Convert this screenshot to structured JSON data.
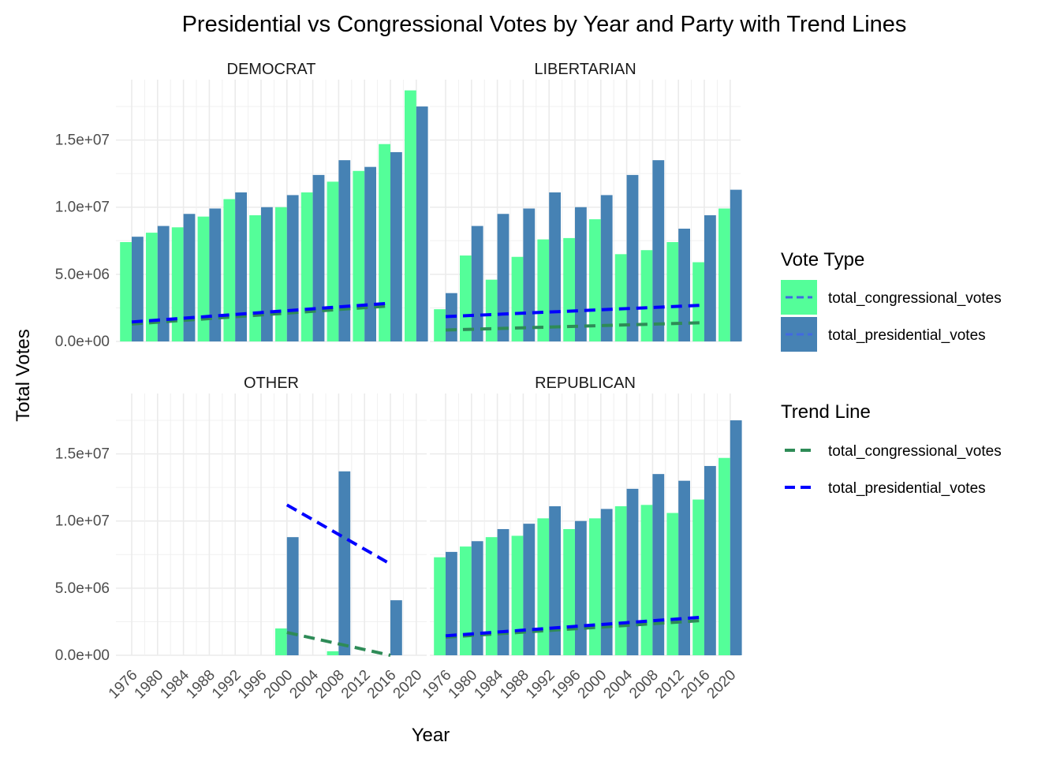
{
  "chart_data": {
    "type": "bar",
    "title": "Presidential vs Congressional Votes by Year and Party with Trend Lines",
    "xlabel": "Year",
    "ylabel": "Total Votes",
    "ylim": [
      0,
      19500000
    ],
    "y_ticks": [
      0,
      5000000,
      10000000,
      15000000
    ],
    "y_tick_labels": [
      "0.0e+00",
      "5.0e+06",
      "1.0e+07",
      "1.5e+07"
    ],
    "x_tick_labels": [
      "1976",
      "1980",
      "1984",
      "1988",
      "1992",
      "1996",
      "2000",
      "2004",
      "2008",
      "2012",
      "2016",
      "2020"
    ],
    "grid": true,
    "legend_position": "right",
    "colors": {
      "total_congressional_votes": "#54FE99",
      "total_presidential_votes": "#4682B4",
      "trend_congressional": "#2E8B57",
      "trend_presidential": "#0000FF"
    },
    "legend": {
      "fill_title": "Vote Type",
      "fill_items": [
        "total_congressional_votes",
        "total_presidential_votes"
      ],
      "line_title": "Trend Line",
      "line_items": [
        "total_congressional_votes",
        "total_presidential_votes"
      ]
    },
    "panels": [
      {
        "name": "DEMOCRAT",
        "congressional": [
          [
            1976,
            7400000
          ],
          [
            1980,
            8100000
          ],
          [
            1984,
            8500000
          ],
          [
            1988,
            9300000
          ],
          [
            1992,
            10600000
          ],
          [
            1996,
            9400000
          ],
          [
            2000,
            10000000
          ],
          [
            2004,
            11100000
          ],
          [
            2008,
            11900000
          ],
          [
            2012,
            12700000
          ],
          [
            2016,
            14700000
          ],
          [
            2020,
            18700000
          ]
        ],
        "presidential": [
          [
            1976,
            7800000
          ],
          [
            1980,
            8600000
          ],
          [
            1984,
            9500000
          ],
          [
            1988,
            9900000
          ],
          [
            1992,
            11100000
          ],
          [
            1996,
            10000000
          ],
          [
            2000,
            10900000
          ],
          [
            2004,
            12400000
          ],
          [
            2008,
            13500000
          ],
          [
            2012,
            13000000
          ],
          [
            2016,
            14100000
          ],
          [
            2020,
            17500000
          ]
        ],
        "trend_congressional": [
          [
            1976,
            1300000
          ],
          [
            2016,
            2650000
          ]
        ],
        "trend_presidential": [
          [
            1976,
            1450000
          ],
          [
            2016,
            2850000
          ]
        ]
      },
      {
        "name": "LIBERTARIAN",
        "congressional": [
          [
            1976,
            2400000
          ],
          [
            1980,
            6400000
          ],
          [
            1984,
            4600000
          ],
          [
            1988,
            6300000
          ],
          [
            1992,
            7600000
          ],
          [
            1996,
            7700000
          ],
          [
            2000,
            9100000
          ],
          [
            2004,
            6500000
          ],
          [
            2008,
            6800000
          ],
          [
            2012,
            7400000
          ],
          [
            2016,
            5900000
          ],
          [
            2020,
            9900000
          ]
        ],
        "presidential": [
          [
            1976,
            3600000
          ],
          [
            1980,
            8600000
          ],
          [
            1984,
            9500000
          ],
          [
            1988,
            9900000
          ],
          [
            1992,
            11100000
          ],
          [
            1996,
            10000000
          ],
          [
            2000,
            10900000
          ],
          [
            2004,
            12400000
          ],
          [
            2008,
            13500000
          ],
          [
            2012,
            8400000
          ],
          [
            2016,
            9400000
          ],
          [
            2020,
            11300000
          ]
        ],
        "trend_congressional": [
          [
            1976,
            850000
          ],
          [
            2016,
            1400000
          ]
        ],
        "trend_presidential": [
          [
            1976,
            1850000
          ],
          [
            2016,
            2700000
          ]
        ]
      },
      {
        "name": "OTHER",
        "congressional": [
          [
            2000,
            2000000
          ],
          [
            2008,
            300000
          ]
        ],
        "presidential": [
          [
            2000,
            8800000
          ],
          [
            2008,
            13700000
          ],
          [
            2016,
            4100000
          ]
        ],
        "trend_congressional": [
          [
            2000,
            1700000
          ],
          [
            2016,
            0
          ]
        ],
        "trend_presidential": [
          [
            2000,
            11200000
          ],
          [
            2016,
            6800000
          ]
        ]
      },
      {
        "name": "REPUBLICAN",
        "congressional": [
          [
            1976,
            7300000
          ],
          [
            1980,
            8100000
          ],
          [
            1984,
            8800000
          ],
          [
            1988,
            8900000
          ],
          [
            1992,
            10200000
          ],
          [
            1996,
            9400000
          ],
          [
            2000,
            10200000
          ],
          [
            2004,
            11100000
          ],
          [
            2008,
            11200000
          ],
          [
            2012,
            10600000
          ],
          [
            2016,
            11600000
          ],
          [
            2020,
            14700000
          ]
        ],
        "presidential": [
          [
            1976,
            7700000
          ],
          [
            1980,
            8500000
          ],
          [
            1984,
            9400000
          ],
          [
            1988,
            9800000
          ],
          [
            1992,
            11100000
          ],
          [
            1996,
            10000000
          ],
          [
            2000,
            10900000
          ],
          [
            2004,
            12400000
          ],
          [
            2008,
            13500000
          ],
          [
            2012,
            13000000
          ],
          [
            2016,
            14100000
          ],
          [
            2020,
            17500000
          ]
        ],
        "trend_congressional": [
          [
            1976,
            1350000
          ],
          [
            2016,
            2600000
          ]
        ],
        "trend_presidential": [
          [
            1976,
            1450000
          ],
          [
            2016,
            2850000
          ]
        ]
      }
    ]
  }
}
